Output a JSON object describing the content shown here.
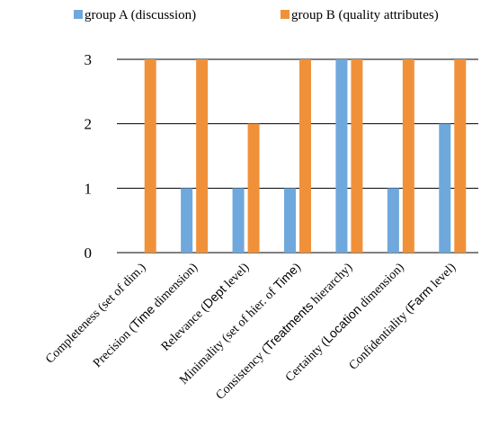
{
  "chart_data": {
    "type": "bar",
    "categories": [
      [
        {
          "t": "Completeness (set of dim.)"
        }
      ],
      [
        {
          "t": "Precision ("
        },
        {
          "t": "Time",
          "sans": true
        },
        {
          "t": " dimension)"
        }
      ],
      [
        {
          "t": "Relevance ("
        },
        {
          "t": "Dept",
          "sans": true
        },
        {
          "t": " level)"
        }
      ],
      [
        {
          "t": "Minimality (set of hier. of "
        },
        {
          "t": "Time",
          "sans": true
        },
        {
          "t": ")"
        }
      ],
      [
        {
          "t": "Consistency ("
        },
        {
          "t": "Treatments",
          "sans": true
        },
        {
          "t": " hierarchy)"
        }
      ],
      [
        {
          "t": "Certainty ("
        },
        {
          "t": "Location",
          "sans": true
        },
        {
          "t": " dimension)"
        }
      ],
      [
        {
          "t": "Confidentiality ("
        },
        {
          "t": "Farm",
          "sans": true
        },
        {
          "t": " level)"
        }
      ]
    ],
    "series": [
      {
        "name": "group A (discussion)",
        "color": "#6fa8dc",
        "values": [
          0,
          1,
          1,
          1,
          3,
          1,
          2
        ]
      },
      {
        "name": "group B (quality attributes)",
        "color": "#f0913a",
        "values": [
          3,
          3,
          2,
          3,
          3,
          3,
          3
        ]
      }
    ],
    "ylim": [
      0,
      3
    ],
    "yticks": [
      0,
      1,
      2,
      3
    ],
    "grid": true,
    "legend": "top"
  }
}
